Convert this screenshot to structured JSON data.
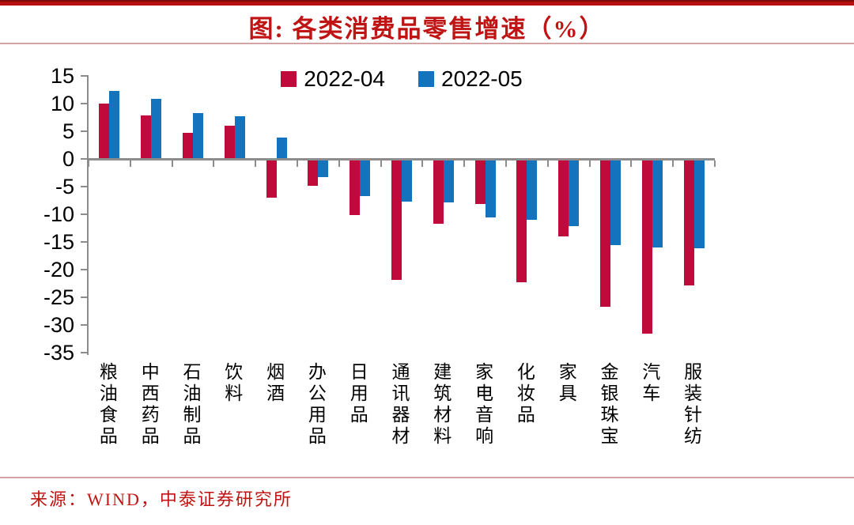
{
  "header": {
    "title": "图: 各类消费品零售增速（%）"
  },
  "chart_data": {
    "type": "bar",
    "title": "各类消费品零售增速（%）",
    "categories": [
      "粮油食品",
      "中西药品",
      "石油制品",
      "饮料",
      "烟酒",
      "办公用品",
      "日用品",
      "通讯器材",
      "建筑材料",
      "家电音响",
      "化妆品",
      "家具",
      "金银珠宝",
      "汽车",
      "服装针纺"
    ],
    "series": [
      {
        "name": "2022-04",
        "color": "#C00A3C",
        "values": [
          10.0,
          7.9,
          4.7,
          6.0,
          -7.0,
          -4.8,
          -10.2,
          -21.8,
          -11.7,
          -8.1,
          -22.3,
          -14.0,
          -26.7,
          -31.6,
          -22.8
        ]
      },
      {
        "name": "2022-05",
        "color": "#1473BD",
        "values": [
          12.3,
          10.8,
          8.3,
          7.7,
          3.8,
          -3.3,
          -6.7,
          -7.7,
          -7.8,
          -10.6,
          -11.0,
          -12.2,
          -15.5,
          -16.0,
          -16.2
        ]
      }
    ],
    "xlabel": "",
    "ylabel": "",
    "ylim": [
      -35,
      15
    ],
    "yticks": [
      15,
      10,
      5,
      0,
      -5,
      -10,
      -15,
      -20,
      -25,
      -30,
      -35
    ],
    "grid": false,
    "legend_position": "top-center",
    "axis_color": "#8C8C8C"
  },
  "footer": {
    "source": "来源：WIND，中泰证券研究所"
  },
  "colors": {
    "accent_red": "#C01414",
    "top_bar_red": "#B50F0F",
    "bar_red": "#C00A3C",
    "bar_blue": "#1473BD",
    "divider_pink": "#D4A3A3",
    "axis_gray": "#8C8C8C"
  }
}
